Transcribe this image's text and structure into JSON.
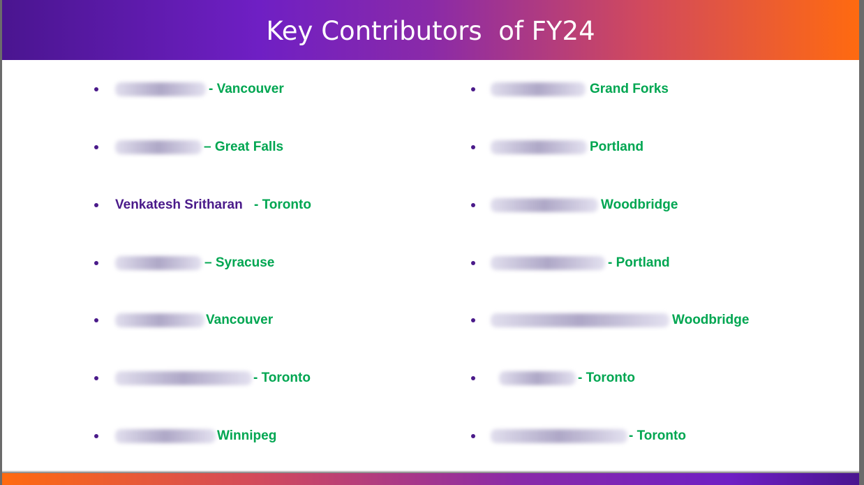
{
  "slide": {
    "title": "Key Contributors  of FY24",
    "left_column": [
      {
        "name": "",
        "location": "- Vancouver"
      },
      {
        "name": "",
        "location": "– Great Falls"
      },
      {
        "name": "Venkatesh Sritharan",
        "location": "- Toronto"
      },
      {
        "name": "",
        "location": "– Syracuse"
      },
      {
        "name": "",
        "location": "Vancouver"
      },
      {
        "name": "",
        "location": "- Toronto"
      },
      {
        "name": "",
        "location": "Winnipeg"
      }
    ],
    "right_column": [
      {
        "name": "",
        "location": "Grand Forks"
      },
      {
        "name": "",
        "location": "Portland"
      },
      {
        "name": "",
        "location": "Woodbridge"
      },
      {
        "name": "",
        "location": "- Portland"
      },
      {
        "name": "",
        "location": "Woodbridge"
      },
      {
        "name": "",
        "location": "- Toronto"
      },
      {
        "name": "",
        "location": "- Toronto"
      }
    ]
  }
}
